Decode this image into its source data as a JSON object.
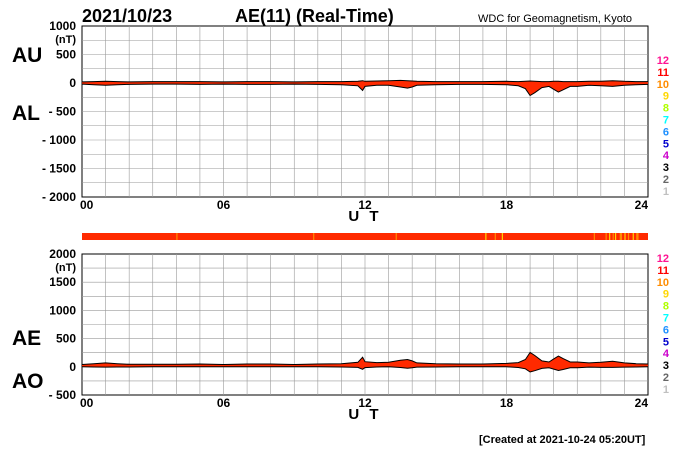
{
  "header": {
    "date": "2021/10/23",
    "title": "AE(11) (Real-Time)",
    "source": "WDC for Geomagnetism, Kyoto"
  },
  "footer": {
    "created": "[Created at 2021-10-24 05:20UT]"
  },
  "station_legend": {
    "labels": [
      "12",
      "11",
      "10",
      "9",
      "8",
      "7",
      "6",
      "5",
      "4",
      "3",
      "2",
      "1"
    ],
    "colors": [
      "#ff1493",
      "#ff0000",
      "#ff8c00",
      "#ffd700",
      "#b0ff00",
      "#00ffff",
      "#1e90ff",
      "#0000cd",
      "#cc00cc",
      "#000000",
      "#666666",
      "#c0c0c0"
    ]
  },
  "chart_data": [
    {
      "type": "area",
      "panel": "AU/AL",
      "side_labels": [
        "AU",
        "AL"
      ],
      "unit_label": "(nT)",
      "xlabel": "U T",
      "xticks": [
        "00",
        "06",
        "12",
        "18",
        "24"
      ],
      "xlim": [
        0,
        24
      ],
      "ylim": [
        -2000,
        1000
      ],
      "yticks": [
        "1000",
        "500",
        "0",
        "- 500",
        "- 1000",
        "- 1500",
        "- 2000"
      ],
      "ytick_values": [
        1000,
        500,
        0,
        -500,
        -1000,
        -1500,
        -2000
      ],
      "grid": true,
      "fill_color": "#ff2a00",
      "line_color": "#000000",
      "series": [
        {
          "x": [
            0,
            0.5,
            1,
            1.5,
            2,
            3,
            4,
            5,
            6,
            7,
            8,
            9,
            10,
            11,
            11.7,
            11.9,
            12,
            12.5,
            13,
            13.5,
            13.8,
            14,
            14.2,
            15,
            16,
            17,
            18,
            18.5,
            18.8,
            19,
            19.2,
            19.5,
            19.8,
            20,
            20.2,
            20.4,
            20.7,
            21,
            21.5,
            22,
            22.5,
            23,
            23.5,
            24
          ],
          "upper": [
            20,
            25,
            30,
            25,
            20,
            25,
            25,
            25,
            20,
            25,
            25,
            20,
            25,
            25,
            30,
            40,
            30,
            35,
            40,
            45,
            40,
            35,
            30,
            25,
            25,
            25,
            30,
            25,
            30,
            35,
            30,
            25,
            25,
            30,
            30,
            25,
            25,
            25,
            30,
            30,
            40,
            30,
            25,
            25
          ],
          "lower": [
            -20,
            -30,
            -40,
            -30,
            -25,
            -20,
            -20,
            -25,
            -20,
            -25,
            -25,
            -20,
            -25,
            -30,
            -50,
            -130,
            -60,
            -40,
            -40,
            -70,
            -90,
            -70,
            -40,
            -30,
            -25,
            -25,
            -30,
            -50,
            -100,
            -220,
            -170,
            -80,
            -60,
            -110,
            -160,
            -120,
            -60,
            -60,
            -40,
            -50,
            -60,
            -40,
            -30,
            -25
          ]
        }
      ]
    },
    {
      "type": "area",
      "panel": "AE/AO",
      "side_labels": [
        "AE",
        "AO"
      ],
      "unit_label": "(nT)",
      "xlabel": "U T",
      "xticks": [
        "00",
        "06",
        "12",
        "18",
        "24"
      ],
      "xlim": [
        0,
        24
      ],
      "ylim": [
        -500,
        2000
      ],
      "yticks": [
        "2000",
        "1500",
        "1000",
        "500",
        "0",
        "- 500"
      ],
      "ytick_values": [
        2000,
        1500,
        1000,
        500,
        0,
        -500
      ],
      "grid": true,
      "fill_color": "#ff2a00",
      "line_color": "#000000",
      "series": [
        {
          "x": [
            0,
            0.5,
            1,
            1.5,
            2,
            3,
            4,
            5,
            6,
            7,
            8,
            9,
            10,
            11,
            11.7,
            11.9,
            12,
            12.5,
            13,
            13.5,
            13.8,
            14,
            14.2,
            15,
            16,
            17,
            18,
            18.5,
            18.8,
            19,
            19.2,
            19.5,
            19.8,
            20,
            20.2,
            20.4,
            20.7,
            21,
            21.5,
            22,
            22.5,
            23,
            23.5,
            24
          ],
          "upper": [
            40,
            55,
            70,
            55,
            45,
            45,
            45,
            50,
            40,
            50,
            50,
            40,
            50,
            55,
            80,
            170,
            90,
            75,
            80,
            115,
            130,
            105,
            70,
            55,
            50,
            50,
            60,
            75,
            130,
            255,
            200,
            105,
            85,
            140,
            190,
            145,
            85,
            85,
            70,
            80,
            100,
            70,
            55,
            50
          ],
          "lower": [
            0,
            -3,
            -5,
            -3,
            -3,
            2,
            2,
            0,
            0,
            0,
            0,
            0,
            0,
            -3,
            -10,
            -45,
            -15,
            -3,
            0,
            -13,
            -25,
            -18,
            -5,
            -3,
            0,
            0,
            0,
            -13,
            -35,
            -93,
            -70,
            -28,
            -18,
            -40,
            -65,
            -48,
            -18,
            -18,
            -5,
            -10,
            -10,
            -5,
            -3,
            0
          ]
        }
      ]
    }
  ],
  "status_bar": {
    "base_color": "#ff2a00",
    "segments": [
      {
        "start": 4.0,
        "end": 4.05,
        "color": "#ff8c00"
      },
      {
        "start": 9.8,
        "end": 9.85,
        "color": "#ff8c00"
      },
      {
        "start": 13.3,
        "end": 13.35,
        "color": "#ff8c00"
      },
      {
        "start": 17.1,
        "end": 17.15,
        "color": "#ffd700"
      },
      {
        "start": 17.5,
        "end": 17.55,
        "color": "#ff8c00"
      },
      {
        "start": 17.8,
        "end": 17.85,
        "color": "#ffd700"
      },
      {
        "start": 21.7,
        "end": 21.75,
        "color": "#ff8c00"
      },
      {
        "start": 22.2,
        "end": 22.25,
        "color": "#ff8c00"
      },
      {
        "start": 22.35,
        "end": 22.4,
        "color": "#ffd700"
      },
      {
        "start": 22.5,
        "end": 22.55,
        "color": "#ff8c00"
      },
      {
        "start": 22.6,
        "end": 22.65,
        "color": "#ffd700"
      },
      {
        "start": 22.8,
        "end": 22.9,
        "color": "#ff8c00"
      },
      {
        "start": 23.0,
        "end": 23.05,
        "color": "#ffd700"
      },
      {
        "start": 23.15,
        "end": 23.2,
        "color": "#ff8c00"
      },
      {
        "start": 23.35,
        "end": 23.4,
        "color": "#ffd700"
      },
      {
        "start": 23.5,
        "end": 23.6,
        "color": "#ff8c00"
      }
    ]
  }
}
